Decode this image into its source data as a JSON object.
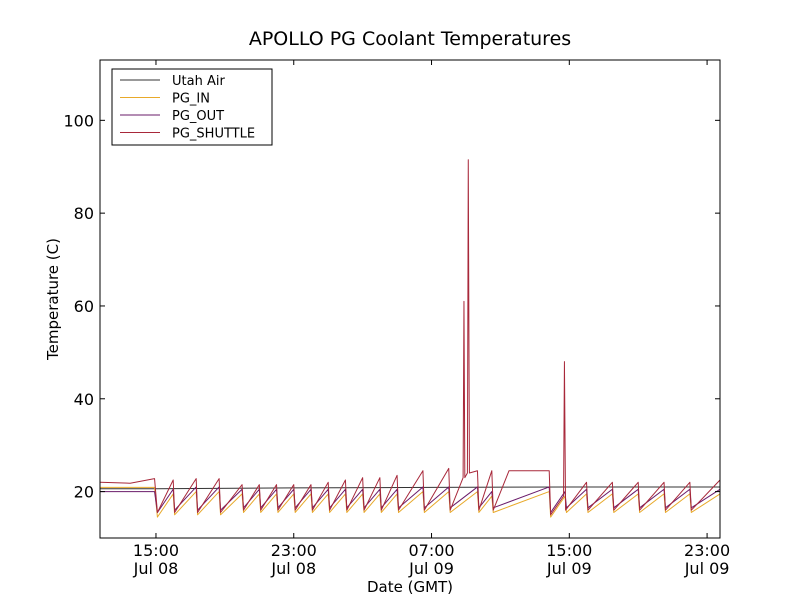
{
  "chart_data": {
    "type": "line",
    "title": "APOLLO PG Coolant Temperatures",
    "xlabel": "Date (GMT)",
    "ylabel": "Temperature (C)",
    "xlim": [
      "2012-07-08T11:45",
      "2012-07-09T23:45"
    ],
    "ylim": [
      10,
      113
    ],
    "grid": false,
    "legend_position": "top-left",
    "x_ticks": [
      {
        "x": "2012-07-08T15:00",
        "time": "15:00",
        "date": "Jul 08"
      },
      {
        "x": "2012-07-08T23:00",
        "time": "23:00",
        "date": "Jul 08"
      },
      {
        "x": "2012-07-09T07:00",
        "time": "07:00",
        "date": "Jul 09"
      },
      {
        "x": "2012-07-09T15:00",
        "time": "15:00",
        "date": "Jul 09"
      },
      {
        "x": "2012-07-09T23:00",
        "time": "23:00",
        "date": "Jul 09"
      }
    ],
    "y_ticks": [
      20,
      40,
      60,
      80,
      100
    ],
    "series": [
      {
        "name": "Utah Air",
        "color": "#333333",
        "points": [
          [
            "2012-07-08T11:45",
            20.6
          ],
          [
            "2012-07-08T15:00",
            20.6
          ],
          [
            "2012-07-08T23:00",
            20.8
          ],
          [
            "2012-07-09T07:00",
            20.9
          ],
          [
            "2012-07-09T15:00",
            21.0
          ],
          [
            "2012-07-09T23:45",
            21.0
          ]
        ]
      },
      {
        "name": "PG_IN",
        "color": "#e8a92a",
        "points": [
          [
            "2012-07-08T11:45",
            20.9
          ],
          [
            "2012-07-08T14:55",
            20.9
          ],
          [
            "2012-07-08T15:05",
            14.5
          ],
          [
            "2012-07-08T16:00",
            19.5
          ],
          [
            "2012-07-08T16:05",
            15.0
          ],
          [
            "2012-07-08T17:20",
            20.0
          ],
          [
            "2012-07-08T17:25",
            15.0
          ],
          [
            "2012-07-08T18:40",
            20.0
          ],
          [
            "2012-07-08T18:45",
            15.0
          ],
          [
            "2012-07-08T20:00",
            19.5
          ],
          [
            "2012-07-08T20:05",
            15.5
          ],
          [
            "2012-07-08T21:00",
            19.5
          ],
          [
            "2012-07-08T21:05",
            15.5
          ],
          [
            "2012-07-08T22:00",
            19.5
          ],
          [
            "2012-07-08T22:05",
            15.5
          ],
          [
            "2012-07-08T23:00",
            19.5
          ],
          [
            "2012-07-08T23:05",
            15.5
          ],
          [
            "2012-07-09T00:00",
            19.5
          ],
          [
            "2012-07-09T00:05",
            15.5
          ],
          [
            "2012-07-09T01:00",
            19.5
          ],
          [
            "2012-07-09T01:05",
            15.5
          ],
          [
            "2012-07-09T02:00",
            19.5
          ],
          [
            "2012-07-09T02:05",
            15.5
          ],
          [
            "2012-07-09T03:00",
            19.5
          ],
          [
            "2012-07-09T03:05",
            15.5
          ],
          [
            "2012-07-09T04:00",
            19.5
          ],
          [
            "2012-07-09T04:05",
            15.5
          ],
          [
            "2012-07-09T05:00",
            19.5
          ],
          [
            "2012-07-09T05:05",
            15.5
          ],
          [
            "2012-07-09T06:30",
            20.0
          ],
          [
            "2012-07-09T06:35",
            15.5
          ],
          [
            "2012-07-09T08:00",
            20.0
          ],
          [
            "2012-07-09T08:05",
            15.5
          ],
          [
            "2012-07-09T09:40",
            20.0
          ],
          [
            "2012-07-09T09:45",
            15.5
          ],
          [
            "2012-07-09T10:30",
            19.0
          ],
          [
            "2012-07-09T10:35",
            15.5
          ],
          [
            "2012-07-09T13:50",
            20.0
          ],
          [
            "2012-07-09T13:55",
            14.5
          ],
          [
            "2012-07-09T14:45",
            19.0
          ],
          [
            "2012-07-09T14:50",
            15.5
          ],
          [
            "2012-07-09T16:00",
            19.5
          ],
          [
            "2012-07-09T16:05",
            15.5
          ],
          [
            "2012-07-09T17:30",
            19.5
          ],
          [
            "2012-07-09T17:35",
            15.5
          ],
          [
            "2012-07-09T19:00",
            19.5
          ],
          [
            "2012-07-09T19:05",
            15.5
          ],
          [
            "2012-07-09T20:30",
            19.5
          ],
          [
            "2012-07-09T20:35",
            15.5
          ],
          [
            "2012-07-09T22:00",
            19.5
          ],
          [
            "2012-07-09T22:05",
            15.5
          ],
          [
            "2012-07-09T23:45",
            19.5
          ]
        ]
      },
      {
        "name": "PG_OUT",
        "color": "#6a1b6a",
        "points": [
          [
            "2012-07-08T11:45",
            20.0
          ],
          [
            "2012-07-08T14:55",
            20.0
          ],
          [
            "2012-07-08T15:05",
            15.5
          ],
          [
            "2012-07-08T16:00",
            20.5
          ],
          [
            "2012-07-08T16:05",
            16.0
          ],
          [
            "2012-07-08T17:20",
            21.0
          ],
          [
            "2012-07-08T17:25",
            16.0
          ],
          [
            "2012-07-08T18:40",
            21.0
          ],
          [
            "2012-07-08T18:45",
            16.0
          ],
          [
            "2012-07-08T20:00",
            20.5
          ],
          [
            "2012-07-08T20:05",
            16.5
          ],
          [
            "2012-07-08T21:00",
            20.5
          ],
          [
            "2012-07-08T21:05",
            16.5
          ],
          [
            "2012-07-08T22:00",
            20.5
          ],
          [
            "2012-07-08T22:05",
            16.5
          ],
          [
            "2012-07-08T23:00",
            20.5
          ],
          [
            "2012-07-08T23:05",
            16.5
          ],
          [
            "2012-07-09T00:00",
            20.5
          ],
          [
            "2012-07-09T00:05",
            16.5
          ],
          [
            "2012-07-09T01:00",
            20.5
          ],
          [
            "2012-07-09T01:05",
            16.5
          ],
          [
            "2012-07-09T02:00",
            20.5
          ],
          [
            "2012-07-09T02:05",
            16.5
          ],
          [
            "2012-07-09T03:00",
            20.5
          ],
          [
            "2012-07-09T03:05",
            16.5
          ],
          [
            "2012-07-09T04:00",
            20.5
          ],
          [
            "2012-07-09T04:05",
            16.5
          ],
          [
            "2012-07-09T05:00",
            20.5
          ],
          [
            "2012-07-09T05:05",
            16.5
          ],
          [
            "2012-07-09T06:30",
            21.0
          ],
          [
            "2012-07-09T06:35",
            16.5
          ],
          [
            "2012-07-09T08:00",
            21.0
          ],
          [
            "2012-07-09T08:05",
            16.5
          ],
          [
            "2012-07-09T09:40",
            21.0
          ],
          [
            "2012-07-09T09:45",
            16.5
          ],
          [
            "2012-07-09T10:30",
            20.0
          ],
          [
            "2012-07-09T10:35",
            16.5
          ],
          [
            "2012-07-09T13:50",
            21.0
          ],
          [
            "2012-07-09T13:55",
            15.5
          ],
          [
            "2012-07-09T14:45",
            20.0
          ],
          [
            "2012-07-09T14:50",
            16.5
          ],
          [
            "2012-07-09T16:00",
            20.5
          ],
          [
            "2012-07-09T16:05",
            16.5
          ],
          [
            "2012-07-09T17:30",
            20.5
          ],
          [
            "2012-07-09T17:35",
            16.5
          ],
          [
            "2012-07-09T19:00",
            20.5
          ],
          [
            "2012-07-09T19:05",
            16.5
          ],
          [
            "2012-07-09T20:30",
            20.5
          ],
          [
            "2012-07-09T20:35",
            16.5
          ],
          [
            "2012-07-09T22:00",
            20.5
          ],
          [
            "2012-07-09T22:05",
            16.5
          ],
          [
            "2012-07-09T23:45",
            20.5
          ]
        ]
      },
      {
        "name": "PG_SHUTTLE",
        "color": "#a8283a",
        "points": [
          [
            "2012-07-08T11:45",
            22.0
          ],
          [
            "2012-07-08T13:30",
            21.8
          ],
          [
            "2012-07-08T14:55",
            22.8
          ],
          [
            "2012-07-08T15:05",
            15.5
          ],
          [
            "2012-07-08T16:00",
            22.5
          ],
          [
            "2012-07-08T16:05",
            15.5
          ],
          [
            "2012-07-08T17:20",
            22.8
          ],
          [
            "2012-07-08T17:25",
            15.5
          ],
          [
            "2012-07-08T18:40",
            22.8
          ],
          [
            "2012-07-08T18:45",
            15.5
          ],
          [
            "2012-07-08T20:00",
            21.5
          ],
          [
            "2012-07-08T20:05",
            16.0
          ],
          [
            "2012-07-08T21:00",
            21.5
          ],
          [
            "2012-07-08T21:05",
            16.0
          ],
          [
            "2012-07-08T22:00",
            21.5
          ],
          [
            "2012-07-08T22:05",
            16.0
          ],
          [
            "2012-07-08T23:00",
            21.5
          ],
          [
            "2012-07-08T23:05",
            16.0
          ],
          [
            "2012-07-09T00:00",
            21.5
          ],
          [
            "2012-07-09T00:05",
            16.0
          ],
          [
            "2012-07-09T01:00",
            22.0
          ],
          [
            "2012-07-09T01:05",
            16.0
          ],
          [
            "2012-07-09T02:00",
            22.5
          ],
          [
            "2012-07-09T02:05",
            16.0
          ],
          [
            "2012-07-09T03:00",
            23.0
          ],
          [
            "2012-07-09T03:05",
            16.0
          ],
          [
            "2012-07-09T04:00",
            23.0
          ],
          [
            "2012-07-09T04:05",
            16.0
          ],
          [
            "2012-07-09T05:00",
            23.5
          ],
          [
            "2012-07-09T05:05",
            16.0
          ],
          [
            "2012-07-09T06:30",
            24.5
          ],
          [
            "2012-07-09T06:35",
            16.0
          ],
          [
            "2012-07-09T08:00",
            25.0
          ],
          [
            "2012-07-09T08:05",
            16.0
          ],
          [
            "2012-07-09T08:50",
            23.0
          ],
          [
            "2012-07-09T08:53",
            61.0
          ],
          [
            "2012-07-09T08:56",
            23.0
          ],
          [
            "2012-07-09T09:05",
            24.0
          ],
          [
            "2012-07-09T09:08",
            91.5
          ],
          [
            "2012-07-09T09:12",
            24.0
          ],
          [
            "2012-07-09T09:40",
            24.5
          ],
          [
            "2012-07-09T09:45",
            16.0
          ],
          [
            "2012-07-09T10:30",
            24.5
          ],
          [
            "2012-07-09T10:35",
            16.0
          ],
          [
            "2012-07-09T11:30",
            24.5
          ],
          [
            "2012-07-09T13:50",
            24.5
          ],
          [
            "2012-07-09T13:55",
            15.0
          ],
          [
            "2012-07-09T14:40",
            19.0
          ],
          [
            "2012-07-09T14:43",
            48.0
          ],
          [
            "2012-07-09T14:47",
            16.0
          ],
          [
            "2012-07-09T16:00",
            22.0
          ],
          [
            "2012-07-09T16:05",
            16.0
          ],
          [
            "2012-07-09T17:30",
            22.0
          ],
          [
            "2012-07-09T17:35",
            16.0
          ],
          [
            "2012-07-09T19:00",
            22.0
          ],
          [
            "2012-07-09T19:05",
            16.0
          ],
          [
            "2012-07-09T20:30",
            22.0
          ],
          [
            "2012-07-09T20:35",
            16.0
          ],
          [
            "2012-07-09T22:00",
            22.0
          ],
          [
            "2012-07-09T22:05",
            16.0
          ],
          [
            "2012-07-09T23:45",
            22.5
          ]
        ]
      }
    ]
  }
}
